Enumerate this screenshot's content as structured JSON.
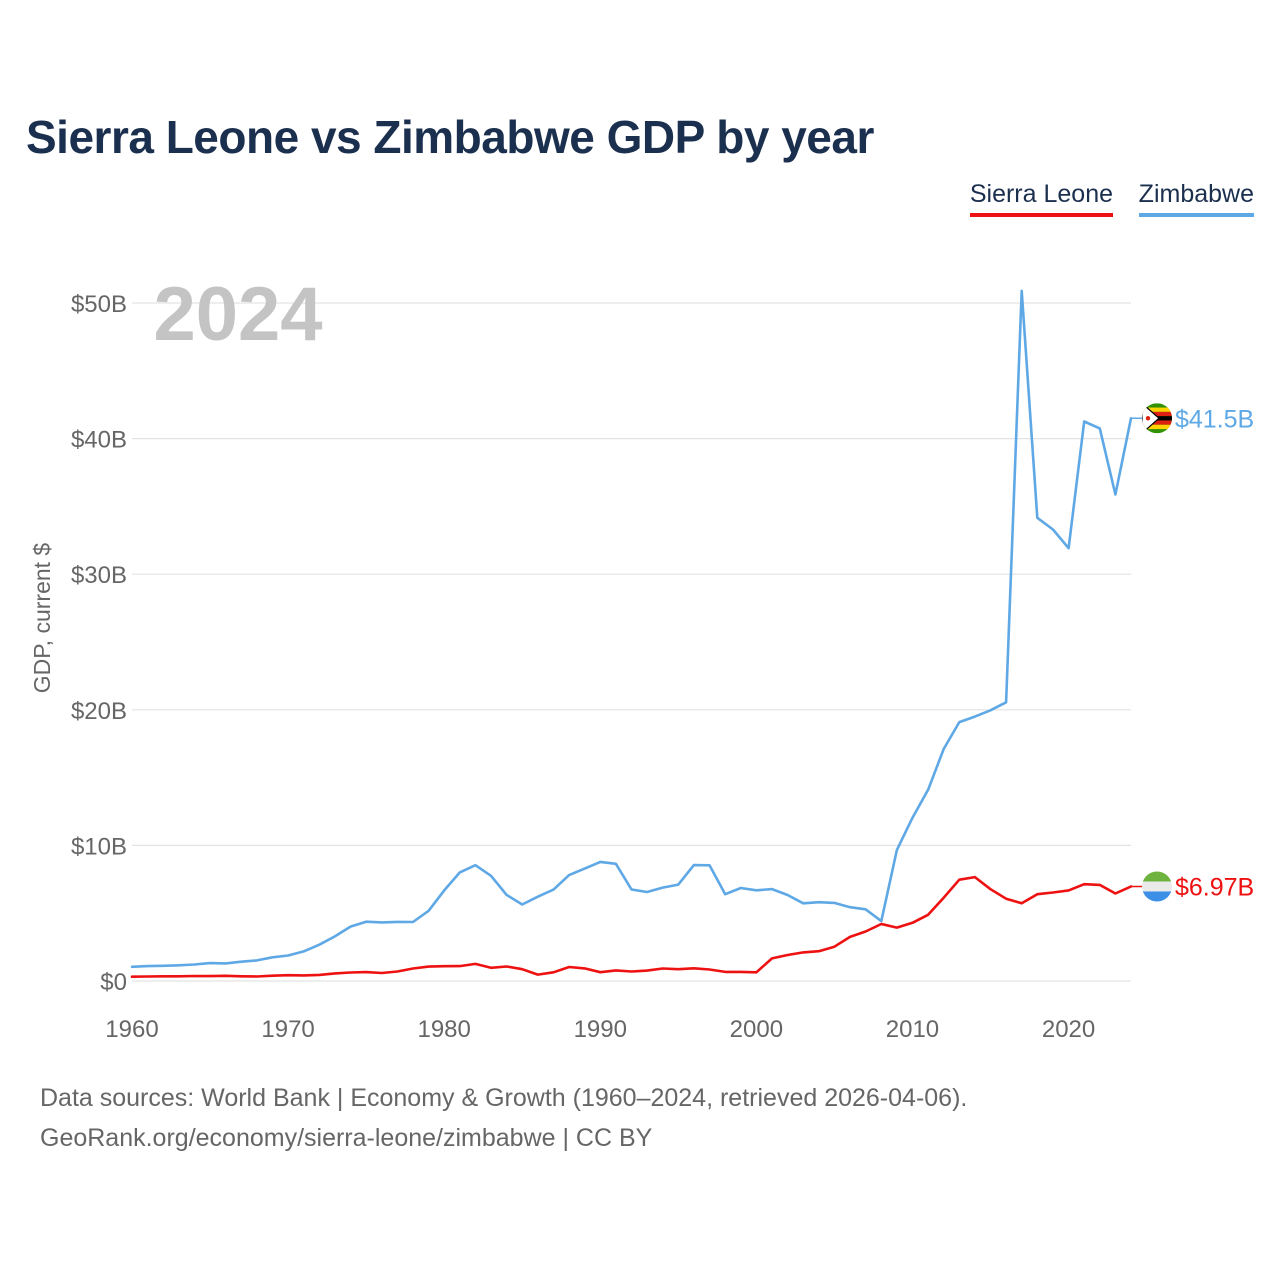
{
  "title": "Sierra Leone vs Zimbabwe GDP by year",
  "legend": {
    "sierra_leone": "Sierra Leone",
    "zimbabwe": "Zimbabwe"
  },
  "footer": {
    "line1": "Data sources: World Bank | Economy & Growth (1960–2024, retrieved 2026-04-06).",
    "line2": "GeoRank.org/economy/sierra-leone/zimbabwe | CC BY"
  },
  "colors": {
    "sierra_leone": "#ee1111",
    "zimbabwe": "#5fa8e6",
    "title": "#1b2f4e",
    "year_watermark": "#c4c4c4"
  },
  "chart_data": {
    "type": "line",
    "title": "Sierra Leone vs Zimbabwe GDP by year",
    "xlabel": "",
    "ylabel": "GDP, current $",
    "year_label": "2024",
    "xlim": [
      1960,
      2024
    ],
    "ylim": [
      0,
      50
    ],
    "y_unit": "billion current US$",
    "x_ticks": [
      1960,
      1970,
      1980,
      1990,
      2000,
      2010,
      2020
    ],
    "y_ticks": [
      0,
      10,
      20,
      30,
      40,
      50
    ],
    "y_tick_labels": [
      "$0",
      "$10B",
      "$20B",
      "$30B",
      "$40B",
      "$50B"
    ],
    "grid": true,
    "legend_position": "top-right",
    "x": [
      1960,
      1961,
      1962,
      1963,
      1964,
      1965,
      1966,
      1967,
      1968,
      1969,
      1970,
      1971,
      1972,
      1973,
      1974,
      1975,
      1976,
      1977,
      1978,
      1979,
      1980,
      1981,
      1982,
      1983,
      1984,
      1985,
      1986,
      1987,
      1988,
      1989,
      1990,
      1991,
      1992,
      1993,
      1994,
      1995,
      1996,
      1997,
      1998,
      1999,
      2000,
      2001,
      2002,
      2003,
      2004,
      2005,
      2006,
      2007,
      2008,
      2009,
      2010,
      2011,
      2012,
      2013,
      2014,
      2015,
      2016,
      2017,
      2018,
      2019,
      2020,
      2021,
      2022,
      2023,
      2024
    ],
    "series": [
      {
        "name": "Sierra Leone",
        "color": "#ee1111",
        "end_label": "$6.97B",
        "values": [
          0.32,
          0.33,
          0.35,
          0.35,
          0.37,
          0.36,
          0.38,
          0.35,
          0.33,
          0.39,
          0.43,
          0.41,
          0.45,
          0.56,
          0.63,
          0.66,
          0.59,
          0.7,
          0.92,
          1.06,
          1.09,
          1.1,
          1.26,
          0.97,
          1.07,
          0.87,
          0.47,
          0.64,
          1.03,
          0.93,
          0.65,
          0.78,
          0.7,
          0.77,
          0.92,
          0.87,
          0.94,
          0.85,
          0.67,
          0.67,
          0.64,
          1.67,
          1.92,
          2.11,
          2.2,
          2.53,
          3.25,
          3.65,
          4.2,
          3.94,
          4.29,
          4.88,
          6.14,
          7.47,
          7.66,
          6.77,
          6.07,
          5.73,
          6.4,
          6.53,
          6.68,
          7.14,
          7.09,
          6.45,
          6.97
        ]
      },
      {
        "name": "Zimbabwe",
        "color": "#5fa8e6",
        "end_label": "$41.5B",
        "values": [
          1.05,
          1.1,
          1.12,
          1.16,
          1.22,
          1.32,
          1.3,
          1.42,
          1.52,
          1.75,
          1.88,
          2.18,
          2.68,
          3.29,
          4.01,
          4.37,
          4.32,
          4.36,
          4.35,
          5.18,
          6.68,
          8.01,
          8.54,
          7.76,
          6.35,
          5.64,
          6.22,
          6.74,
          7.81,
          8.29,
          8.78,
          8.64,
          6.75,
          6.56,
          6.89,
          7.11,
          8.55,
          8.53,
          6.4,
          6.86,
          6.69,
          6.78,
          6.34,
          5.73,
          5.81,
          5.76,
          5.44,
          5.29,
          4.42,
          9.67,
          12.04,
          14.1,
          17.11,
          19.09,
          19.5,
          19.96,
          20.55,
          50.9,
          34.16,
          33.3,
          31.92,
          41.26,
          40.75,
          35.88,
          41.5
        ]
      }
    ]
  }
}
